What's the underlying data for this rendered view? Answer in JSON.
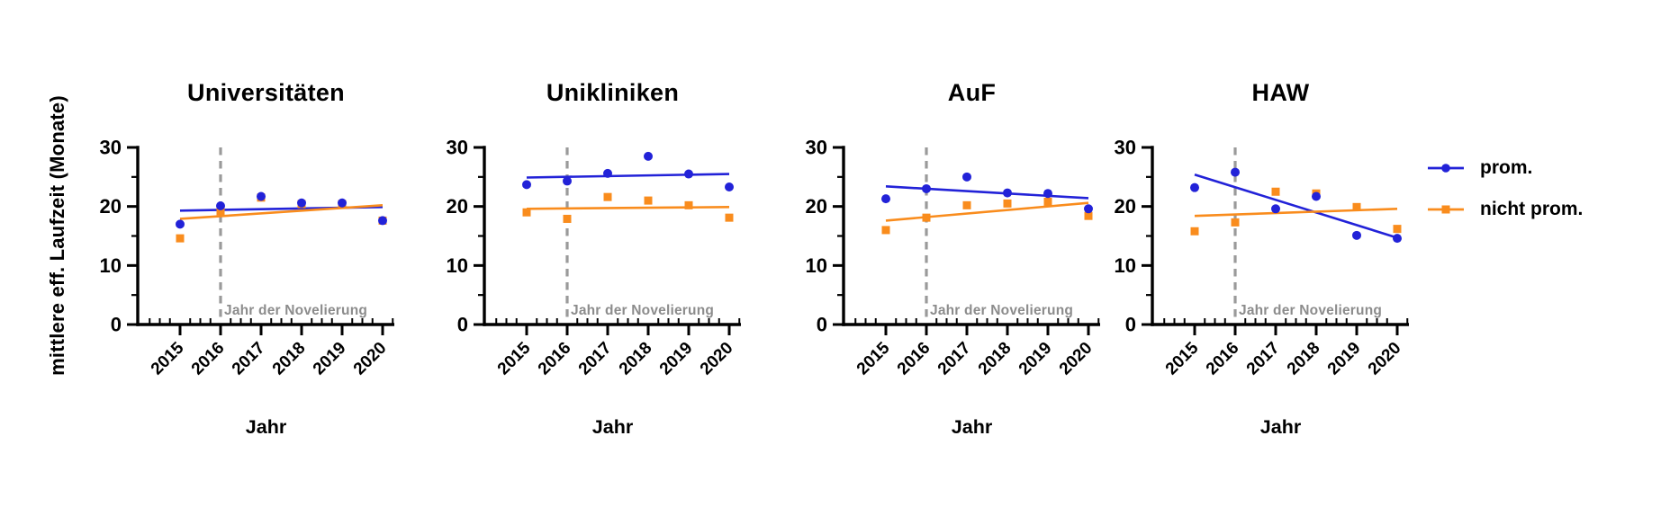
{
  "y_axis": {
    "label": "mittlere eff. Laufzeit (Monate)",
    "ticks": [
      0,
      10,
      20,
      30
    ],
    "max": 30
  },
  "x_axis": {
    "label": "Jahr",
    "years": [
      "2015",
      "2016",
      "2017",
      "2018",
      "2019",
      "2020"
    ]
  },
  "annotation": {
    "text": "Jahr der Novelierung",
    "at_year": "2016"
  },
  "legend": {
    "position": "right",
    "items": [
      {
        "label": "prom.",
        "marker": "circle",
        "color": "#2222d8"
      },
      {
        "label": "nicht prom.",
        "marker": "square",
        "color": "#f98c1d"
      }
    ]
  },
  "colors": {
    "prom": "#2222d8",
    "nicht_prom": "#f98c1d",
    "axis": "#000000",
    "dashed_line": "#9a9a9a",
    "annotation_text": "#8c8c8c"
  },
  "chart_data": [
    {
      "type": "scatter",
      "title": "Universitäten",
      "xlabel": "Jahr",
      "ylabel": "mittlere eff. Laufzeit (Monate)",
      "x": [
        2015,
        2016,
        2017,
        2018,
        2019,
        2020
      ],
      "ylim": [
        0,
        30
      ],
      "yticks": [
        0,
        10,
        20,
        30
      ],
      "grid": false,
      "vline_x": 2016,
      "vline_label": "Jahr der Novelierung",
      "series": [
        {
          "name": "prom.",
          "marker": "circle",
          "color": "#2222d8",
          "values": [
            17.0,
            20.1,
            21.7,
            20.6,
            20.6,
            17.6
          ],
          "trend": {
            "y2015": 19.3,
            "y2020": 19.9
          }
        },
        {
          "name": "nicht prom.",
          "marker": "square",
          "color": "#f98c1d",
          "values": [
            14.6,
            19.2,
            21.5,
            20.4,
            20.4,
            17.6
          ],
          "trend": {
            "y2015": 17.9,
            "y2020": 20.2
          }
        }
      ]
    },
    {
      "type": "scatter",
      "title": "Unikliniken",
      "xlabel": "Jahr",
      "ylabel": "mittlere eff. Laufzeit (Monate)",
      "x": [
        2015,
        2016,
        2017,
        2018,
        2019,
        2020
      ],
      "ylim": [
        0,
        30
      ],
      "yticks": [
        0,
        10,
        20,
        30
      ],
      "grid": false,
      "vline_x": 2016,
      "vline_label": "Jahr der Novelierung",
      "series": [
        {
          "name": "prom.",
          "marker": "circle",
          "color": "#2222d8",
          "values": [
            23.7,
            24.3,
            25.6,
            28.5,
            25.5,
            23.3
          ],
          "trend": {
            "y2015": 24.9,
            "y2020": 25.5
          }
        },
        {
          "name": "nicht prom.",
          "marker": "square",
          "color": "#f98c1d",
          "values": [
            19.0,
            17.9,
            21.6,
            21.0,
            20.2,
            18.1
          ],
          "trend": {
            "y2015": 19.6,
            "y2020": 19.9
          }
        }
      ]
    },
    {
      "type": "scatter",
      "title": "AuF",
      "xlabel": "Jahr",
      "ylabel": "mittlere eff. Laufzeit (Monate)",
      "x": [
        2015,
        2016,
        2017,
        2018,
        2019,
        2020
      ],
      "ylim": [
        0,
        30
      ],
      "yticks": [
        0,
        10,
        20,
        30
      ],
      "grid": false,
      "vline_x": 2016,
      "vline_label": "Jahr der Novelierung",
      "series": [
        {
          "name": "prom.",
          "marker": "circle",
          "color": "#2222d8",
          "values": [
            21.3,
            23.0,
            25.0,
            22.3,
            22.2,
            19.6
          ],
          "trend": {
            "y2015": 23.4,
            "y2020": 21.4
          }
        },
        {
          "name": "nicht prom.",
          "marker": "square",
          "color": "#f98c1d",
          "values": [
            16.0,
            18.1,
            20.2,
            20.5,
            20.8,
            18.4
          ],
          "trend": {
            "y2015": 17.6,
            "y2020": 20.6
          }
        }
      ]
    },
    {
      "type": "scatter",
      "title": "HAW",
      "xlabel": "Jahr",
      "ylabel": "mittlere eff. Laufzeit (Monate)",
      "x": [
        2015,
        2016,
        2017,
        2018,
        2019,
        2020
      ],
      "ylim": [
        0,
        30
      ],
      "yticks": [
        0,
        10,
        20,
        30
      ],
      "grid": false,
      "vline_x": 2016,
      "vline_label": "Jahr der Novelierung",
      "series": [
        {
          "name": "prom.",
          "marker": "circle",
          "color": "#2222d8",
          "values": [
            23.2,
            25.8,
            19.6,
            21.7,
            15.1,
            14.6
          ],
          "trend": {
            "y2015": 25.4,
            "y2020": 14.7
          }
        },
        {
          "name": "nicht prom.",
          "marker": "square",
          "color": "#f98c1d",
          "values": [
            15.8,
            17.3,
            22.5,
            22.2,
            19.9,
            16.2
          ],
          "trend": {
            "y2015": 18.4,
            "y2020": 19.6
          }
        }
      ]
    }
  ]
}
